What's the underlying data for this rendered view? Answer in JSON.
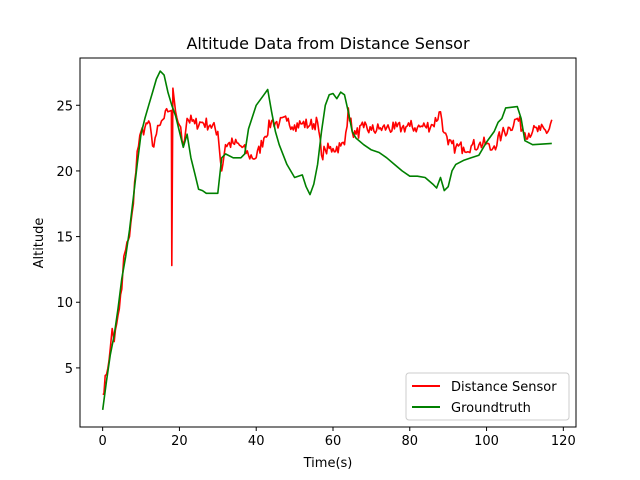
{
  "chart_data": {
    "type": "line",
    "title": "Altitude Data from Distance Sensor",
    "xlabel": "Time(s)",
    "ylabel": "Altitude",
    "xlim": [
      -5.9,
      123.3
    ],
    "ylim": [
      0.5,
      28.6
    ],
    "xticks": [
      0,
      20,
      40,
      60,
      80,
      100,
      120
    ],
    "yticks": [
      5,
      10,
      15,
      20,
      25
    ],
    "grid": false,
    "legend": {
      "placement": "lower-right"
    },
    "series": [
      {
        "name": "Distance Sensor",
        "color": "#ff0000",
        "noise": 0.5,
        "points": [
          [
            0,
            3.0
          ],
          [
            1,
            4.5
          ],
          [
            2,
            6.5
          ],
          [
            2.5,
            8.0
          ],
          [
            3,
            7.0
          ],
          [
            4,
            9.0
          ],
          [
            5,
            11.0
          ],
          [
            5.5,
            13.5
          ],
          [
            6,
            14.0
          ],
          [
            7,
            15.0
          ],
          [
            8,
            17.5
          ],
          [
            9,
            21.5
          ],
          [
            10,
            23.0
          ],
          [
            11,
            23.3
          ],
          [
            12,
            23.8
          ],
          [
            13,
            21.9
          ],
          [
            14,
            22.8
          ],
          [
            15,
            23.5
          ],
          [
            16,
            24.0
          ],
          [
            17,
            24.5
          ],
          [
            17.9,
            24.6
          ],
          [
            18.0,
            12.8
          ],
          [
            18.3,
            26.3
          ],
          [
            19,
            24.5
          ],
          [
            20,
            23.5
          ],
          [
            21,
            22.0
          ],
          [
            22,
            24.0
          ],
          [
            24,
            23.6
          ],
          [
            26,
            23.7
          ],
          [
            28,
            23.5
          ],
          [
            30,
            23.0
          ],
          [
            31,
            20.0
          ],
          [
            32,
            22.0
          ],
          [
            34,
            22.1
          ],
          [
            36,
            21.9
          ],
          [
            38,
            21.2
          ],
          [
            40,
            21.0
          ],
          [
            42,
            22.5
          ],
          [
            44,
            23.8
          ],
          [
            46,
            23.6
          ],
          [
            48,
            23.8
          ],
          [
            50,
            23.5
          ],
          [
            52,
            23.6
          ],
          [
            54,
            23.5
          ],
          [
            56,
            23.7
          ],
          [
            57,
            21.2
          ],
          [
            58,
            21.6
          ],
          [
            60,
            21.7
          ],
          [
            62,
            21.9
          ],
          [
            63,
            22.0
          ],
          [
            64,
            24.8
          ],
          [
            65,
            23.0
          ],
          [
            66,
            22.8
          ],
          [
            68,
            23.3
          ],
          [
            70,
            23.1
          ],
          [
            72,
            23.2
          ],
          [
            74,
            23.3
          ],
          [
            76,
            23.2
          ],
          [
            78,
            23.3
          ],
          [
            80,
            23.4
          ],
          [
            82,
            23.3
          ],
          [
            84,
            23.4
          ],
          [
            86,
            23.5
          ],
          [
            88,
            24.5
          ],
          [
            89,
            22.9
          ],
          [
            90,
            22.0
          ],
          [
            92,
            21.8
          ],
          [
            94,
            21.8
          ],
          [
            96,
            21.9
          ],
          [
            98,
            22.0
          ],
          [
            100,
            22.1
          ],
          [
            101,
            21.6
          ],
          [
            102,
            21.9
          ],
          [
            104,
            22.8
          ],
          [
            106,
            23.3
          ],
          [
            108,
            24.0
          ],
          [
            110,
            22.9
          ],
          [
            112,
            23.0
          ],
          [
            114,
            23.1
          ],
          [
            116,
            23.0
          ],
          [
            117,
            23.9
          ]
        ]
      },
      {
        "name": "Groundtruth",
        "color": "#008000",
        "noise": 0,
        "points": [
          [
            0,
            1.8
          ],
          [
            1,
            4.0
          ],
          [
            2,
            6.0
          ],
          [
            3,
            7.5
          ],
          [
            4,
            9.5
          ],
          [
            5,
            11.8
          ],
          [
            6,
            13.5
          ],
          [
            7,
            15.5
          ],
          [
            8,
            18.0
          ],
          [
            9,
            20.5
          ],
          [
            10,
            22.8
          ],
          [
            11,
            24.0
          ],
          [
            12,
            25.0
          ],
          [
            13,
            26.0
          ],
          [
            14,
            27.0
          ],
          [
            15,
            27.6
          ],
          [
            16,
            27.3
          ],
          [
            17,
            26.0
          ],
          [
            18,
            25.0
          ],
          [
            19,
            24.2
          ],
          [
            20,
            23.0
          ],
          [
            21,
            21.8
          ],
          [
            22,
            22.8
          ],
          [
            23,
            21.0
          ],
          [
            24,
            19.8
          ],
          [
            25,
            18.6
          ],
          [
            26,
            18.5
          ],
          [
            27,
            18.3
          ],
          [
            30,
            18.3
          ],
          [
            31,
            21.0
          ],
          [
            32,
            21.3
          ],
          [
            34,
            21.0
          ],
          [
            36,
            21.0
          ],
          [
            37,
            21.3
          ],
          [
            38,
            23.2
          ],
          [
            40,
            25.0
          ],
          [
            42,
            25.8
          ],
          [
            43,
            26.2
          ],
          [
            44,
            24.5
          ],
          [
            45,
            23.0
          ],
          [
            46,
            22.0
          ],
          [
            48,
            20.5
          ],
          [
            50,
            19.5
          ],
          [
            52,
            19.7
          ],
          [
            53,
            18.8
          ],
          [
            54,
            18.2
          ],
          [
            55,
            19.0
          ],
          [
            56,
            20.5
          ],
          [
            57,
            23.0
          ],
          [
            58,
            25.0
          ],
          [
            59,
            25.8
          ],
          [
            60,
            25.9
          ],
          [
            61,
            25.5
          ],
          [
            62,
            26.0
          ],
          [
            63,
            25.8
          ],
          [
            64,
            24.5
          ],
          [
            65,
            23.0
          ],
          [
            66,
            22.5
          ],
          [
            68,
            22.0
          ],
          [
            70,
            21.6
          ],
          [
            72,
            21.4
          ],
          [
            74,
            21.0
          ],
          [
            76,
            20.5
          ],
          [
            78,
            20.0
          ],
          [
            80,
            19.6
          ],
          [
            82,
            19.6
          ],
          [
            84,
            19.5
          ],
          [
            86,
            19.0
          ],
          [
            87,
            18.7
          ],
          [
            88,
            19.5
          ],
          [
            89,
            18.5
          ],
          [
            90,
            18.8
          ],
          [
            91,
            20.0
          ],
          [
            92,
            20.5
          ],
          [
            94,
            20.8
          ],
          [
            96,
            21.0
          ],
          [
            98,
            21.2
          ],
          [
            100,
            22.2
          ],
          [
            102,
            23.0
          ],
          [
            103,
            23.7
          ],
          [
            104,
            24.0
          ],
          [
            105,
            24.8
          ],
          [
            108,
            24.9
          ],
          [
            109,
            24.0
          ],
          [
            110,
            22.3
          ],
          [
            112,
            22.0
          ],
          [
            117,
            22.1
          ]
        ]
      }
    ]
  }
}
